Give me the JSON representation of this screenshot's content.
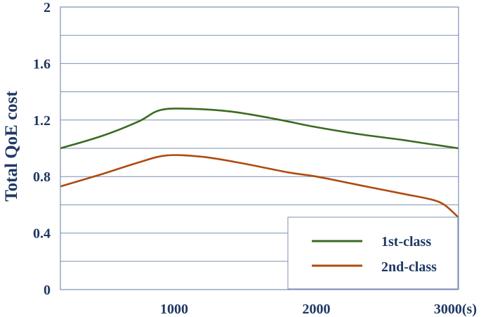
{
  "chart_data": {
    "type": "line",
    "title": "",
    "xlabel": "",
    "ylabel": "Total QoE cost",
    "xlim": [
      200,
      3000
    ],
    "ylim": [
      0,
      2
    ],
    "x_ticks": [
      {
        "value": 1000,
        "label": "1000"
      },
      {
        "value": 2000,
        "label": "2000"
      },
      {
        "value": 3000,
        "label": "3000(s)"
      }
    ],
    "y_ticks": [
      {
        "value": 0,
        "label": "0"
      },
      {
        "value": 0.4,
        "label": "0.4"
      },
      {
        "value": 0.8,
        "label": "0.8"
      },
      {
        "value": 1.2,
        "label": "1.2"
      },
      {
        "value": 1.6,
        "label": "1.6"
      },
      {
        "value": 2,
        "label": "2"
      }
    ],
    "grid": true,
    "legend_position": "bottom-right",
    "series": [
      {
        "name": "1st-class",
        "color": "#3a6b20",
        "x": [
          200,
          500,
          750,
          900,
          1100,
          1400,
          1700,
          2000,
          2300,
          2600,
          2800,
          3000
        ],
        "y": [
          1.0,
          1.09,
          1.19,
          1.27,
          1.28,
          1.26,
          1.21,
          1.15,
          1.1,
          1.06,
          1.03,
          1.0
        ]
      },
      {
        "name": "2nd-class",
        "color": "#b04a10",
        "x": [
          200,
          500,
          750,
          950,
          1200,
          1500,
          1800,
          2000,
          2300,
          2600,
          2800,
          2900,
          3000
        ],
        "y": [
          0.73,
          0.82,
          0.9,
          0.95,
          0.94,
          0.89,
          0.83,
          0.8,
          0.74,
          0.68,
          0.64,
          0.6,
          0.51
        ]
      }
    ]
  }
}
